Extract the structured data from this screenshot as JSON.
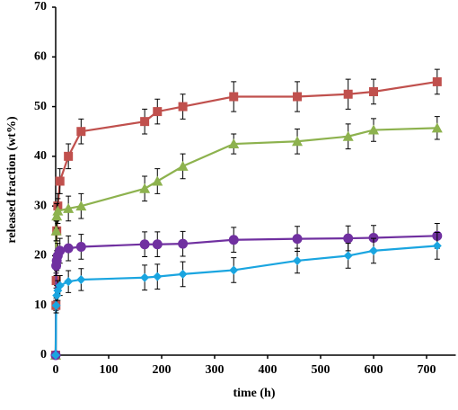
{
  "chart_data": {
    "type": "line",
    "x_label": "time (h)",
    "y_label": "released fraction (wt%)",
    "xlim": [
      0,
      750
    ],
    "ylim": [
      0,
      70
    ],
    "xticks": [
      0,
      100,
      200,
      300,
      400,
      500,
      600,
      700
    ],
    "yticks": [
      0,
      10,
      20,
      30,
      40,
      50,
      60,
      70
    ],
    "series": [
      {
        "color": "#c0504d",
        "marker": "square",
        "x": [
          0,
          0.5,
          1,
          2,
          4,
          8,
          24,
          48,
          168,
          192,
          240,
          336,
          456,
          552,
          600,
          720
        ],
        "values": [
          0,
          10,
          15,
          25,
          30,
          35,
          40,
          45,
          47,
          49,
          50,
          52,
          52,
          52.5,
          53,
          55
        ],
        "errors": [
          0,
          1,
          1.5,
          2,
          2.5,
          2.5,
          2.5,
          2.5,
          2.5,
          2.5,
          2.5,
          3,
          3,
          3,
          2.5,
          2.5
        ]
      },
      {
        "color": "#8db24e",
        "marker": "triangle",
        "x": [
          0,
          1,
          2,
          4,
          24,
          48,
          168,
          192,
          240,
          336,
          456,
          552,
          600,
          720
        ],
        "values": [
          0,
          25,
          28,
          29,
          29.5,
          30,
          33.5,
          35,
          38,
          42.5,
          43,
          44,
          45.3,
          45.7
        ],
        "errors": [
          0,
          2,
          2.5,
          2.5,
          2.5,
          2.5,
          2.5,
          2.5,
          2.5,
          2,
          2.5,
          2.5,
          2.3,
          2.3
        ]
      },
      {
        "color": "#7030a0",
        "marker": "circle",
        "x": [
          0,
          1,
          2,
          4,
          8,
          24,
          48,
          168,
          192,
          240,
          336,
          456,
          552,
          600,
          720
        ],
        "values": [
          0,
          18,
          19,
          20,
          21,
          21.5,
          21.8,
          22.3,
          22.3,
          22.4,
          23.2,
          23.4,
          23.5,
          23.6,
          24
        ],
        "errors": [
          0,
          2,
          2,
          2.5,
          2.5,
          2.5,
          2.5,
          2.5,
          2.5,
          2.5,
          2.5,
          2.5,
          2.5,
          2.5,
          2.5
        ]
      },
      {
        "color": "#1aa5e0",
        "marker": "diamond",
        "x": [
          0,
          1,
          2,
          4,
          8,
          24,
          48,
          168,
          192,
          240,
          336,
          456,
          552,
          600,
          720
        ],
        "values": [
          0,
          10,
          12,
          13,
          14,
          14.8,
          15.2,
          15.6,
          15.8,
          16.3,
          17.1,
          19,
          20,
          21,
          22
        ],
        "errors": [
          0,
          1.5,
          2,
          2,
          2,
          2.2,
          2.2,
          2.5,
          2.5,
          2.5,
          2.5,
          2.5,
          2.5,
          2.5,
          2.7
        ]
      }
    ]
  }
}
